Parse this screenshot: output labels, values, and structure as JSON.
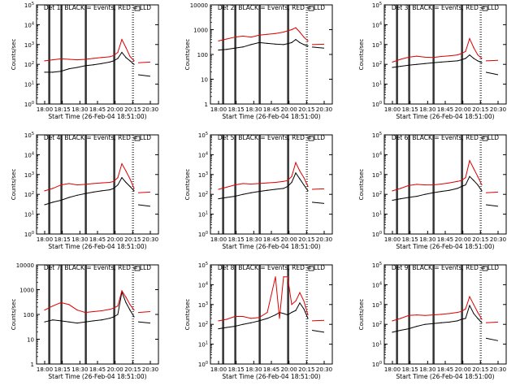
{
  "figure": {
    "grid_layout": "3x3",
    "background": "#ffffff",
    "events_color": "#000000",
    "lld_color": "#dd0000",
    "marker_color": "#000000"
  },
  "chart_data": [
    {
      "type": "line",
      "title": "Det 1: BLACK = Events, RED = LLD",
      "xlabel": "Start Time (26-Feb-04 18:51:00)",
      "ylabel": "Counts/sec",
      "x_ticks": [
        "18:00",
        "18:15",
        "18:30",
        "18:45",
        "20:00",
        "20:15",
        "20:30"
      ],
      "y_ticks": [
        "10^0",
        "10^1",
        "10^2",
        "10^3",
        "10^4",
        "10^5"
      ],
      "yscale": "log",
      "ylim": [
        1,
        100000
      ],
      "xlim": [
        0,
        150
      ],
      "marker_x": [
        15,
        30,
        60,
        95
      ],
      "saa_boundary_x": 118,
      "x": [
        10,
        20,
        30,
        40,
        50,
        60,
        70,
        80,
        90,
        95,
        100,
        105,
        110,
        115,
        120
      ],
      "series": [
        {
          "name": "BLACK = Events",
          "values": [
            40,
            40,
            45,
            60,
            70,
            85,
            95,
            110,
            130,
            150,
            200,
            400,
            220,
            150,
            100
          ]
        },
        {
          "name": "RED = LLD",
          "values": [
            150,
            170,
            190,
            180,
            170,
            180,
            200,
            220,
            240,
            280,
            400,
            1800,
            700,
            250,
            150
          ]
        }
      ],
      "after_saa": {
        "x": [
          125,
          140
        ],
        "events": [
          30,
          25
        ],
        "lld": [
          120,
          130
        ]
      }
    },
    {
      "type": "line",
      "title": "Det 2: BLACK = Events, RED = LLD",
      "xlabel": "Start Time (26-Feb-04 18:51:00)",
      "ylabel": "Counts/sec",
      "x_ticks": [
        "18:00",
        "18:15",
        "18:30",
        "18:45",
        "20:00",
        "20:15",
        "20:30"
      ],
      "y_ticks": [
        "1",
        "10",
        "100",
        "1000",
        "10000"
      ],
      "yscale": "log",
      "ylim": [
        1,
        10000
      ],
      "xlim": [
        0,
        150
      ],
      "marker_x": [
        15,
        30,
        60,
        95
      ],
      "saa_boundary_x": 118,
      "x": [
        10,
        20,
        30,
        40,
        50,
        60,
        70,
        80,
        90,
        95,
        100,
        105,
        110,
        115,
        120
      ],
      "series": [
        {
          "name": "BLACK = Events",
          "values": [
            150,
            160,
            180,
            200,
            250,
            300,
            280,
            260,
            250,
            270,
            300,
            400,
            300,
            250,
            220
          ]
        },
        {
          "name": "RED = LLD",
          "values": [
            350,
            420,
            500,
            550,
            500,
            600,
            650,
            700,
            800,
            900,
            1000,
            1200,
            800,
            500,
            350
          ]
        }
      ],
      "after_saa": {
        "x": [
          125,
          140
        ],
        "events": [
          200,
          180
        ],
        "lld": [
          250,
          260
        ]
      }
    },
    {
      "type": "line",
      "title": "Det 3: BLACK = Events, RED = LLD",
      "xlabel": "Start Time (26-Feb-04 18:51:00)",
      "ylabel": "Counts/sec",
      "x_ticks": [
        "18:00",
        "18:15",
        "18:30",
        "18:45",
        "20:00",
        "20:15",
        "20:30"
      ],
      "y_ticks": [
        "10^0",
        "10^1",
        "10^2",
        "10^3",
        "10^4",
        "10^5"
      ],
      "yscale": "log",
      "ylim": [
        1,
        100000
      ],
      "xlim": [
        0,
        150
      ],
      "marker_x": [
        15,
        30,
        60,
        95
      ],
      "saa_boundary_x": 118,
      "x": [
        10,
        20,
        30,
        40,
        50,
        60,
        70,
        80,
        90,
        95,
        100,
        105,
        110,
        115,
        120
      ],
      "series": [
        {
          "name": "BLACK = Events",
          "values": [
            70,
            80,
            90,
            100,
            110,
            120,
            130,
            140,
            150,
            170,
            200,
            300,
            200,
            150,
            120
          ]
        },
        {
          "name": "RED = LLD",
          "values": [
            130,
            180,
            230,
            260,
            230,
            220,
            250,
            270,
            300,
            350,
            450,
            2000,
            700,
            300,
            200
          ]
        }
      ],
      "after_saa": {
        "x": [
          125,
          140
        ],
        "events": [
          40,
          30
        ],
        "lld": [
          150,
          160
        ]
      }
    },
    {
      "type": "line",
      "title": "Det 4: BLACK = Events, RED = LLD",
      "xlabel": "Start Time (26-Feb-04 18:51:00)",
      "ylabel": "Counts/sec",
      "x_ticks": [
        "18:00",
        "18:15",
        "18:30",
        "18:45",
        "20:00",
        "20:15",
        "20:30"
      ],
      "y_ticks": [
        "10^0",
        "10^1",
        "10^2",
        "10^3",
        "10^4",
        "10^5"
      ],
      "yscale": "log",
      "ylim": [
        1,
        100000
      ],
      "xlim": [
        0,
        150
      ],
      "marker_x": [
        15,
        30,
        60,
        95
      ],
      "saa_boundary_x": 118,
      "x": [
        10,
        20,
        30,
        40,
        50,
        60,
        70,
        80,
        90,
        95,
        100,
        105,
        110,
        115,
        120
      ],
      "series": [
        {
          "name": "BLACK = Events",
          "values": [
            30,
            40,
            50,
            70,
            90,
            110,
            130,
            150,
            170,
            200,
            300,
            700,
            400,
            250,
            150
          ]
        },
        {
          "name": "RED = LLD",
          "values": [
            150,
            200,
            300,
            350,
            300,
            320,
            350,
            380,
            400,
            450,
            700,
            3500,
            1500,
            600,
            200
          ]
        }
      ],
      "after_saa": {
        "x": [
          125,
          140
        ],
        "events": [
          30,
          25
        ],
        "lld": [
          120,
          130
        ]
      }
    },
    {
      "type": "line",
      "title": "Det 5: BLACK = Events, RED = LLD",
      "xlabel": "Start Time (26-Feb-04 18:51:00)",
      "ylabel": "Counts/sec",
      "x_ticks": [
        "18:00",
        "18:15",
        "18:30",
        "18:45",
        "20:00",
        "20:15",
        "20:30"
      ],
      "y_ticks": [
        "10^0",
        "10^1",
        "10^2",
        "10^3",
        "10^4",
        "10^5"
      ],
      "yscale": "log",
      "ylim": [
        1,
        100000
      ],
      "xlim": [
        0,
        150
      ],
      "marker_x": [
        15,
        30,
        60,
        95
      ],
      "saa_boundary_x": 118,
      "x": [
        10,
        20,
        30,
        40,
        50,
        60,
        70,
        80,
        90,
        95,
        100,
        105,
        110,
        115,
        120
      ],
      "series": [
        {
          "name": "BLACK = Events",
          "values": [
            60,
            70,
            80,
            100,
            120,
            140,
            160,
            180,
            200,
            250,
            400,
            1200,
            600,
            300,
            150
          ]
        },
        {
          "name": "RED = LLD",
          "values": [
            180,
            230,
            300,
            350,
            330,
            350,
            380,
            400,
            450,
            500,
            800,
            4000,
            1500,
            700,
            250
          ]
        }
      ],
      "after_saa": {
        "x": [
          125,
          140
        ],
        "events": [
          40,
          35
        ],
        "lld": [
          180,
          190
        ]
      }
    },
    {
      "type": "line",
      "title": "Det 6: BLACK = Events, RED = LLD",
      "xlabel": "Start Time (26-Feb-04 18:51:00)",
      "ylabel": "Counts/sec",
      "x_ticks": [
        "18:00",
        "18:15",
        "18:30",
        "18:45",
        "20:00",
        "20:15",
        "20:30"
      ],
      "y_ticks": [
        "10^0",
        "10^1",
        "10^2",
        "10^3",
        "10^4",
        "10^5"
      ],
      "yscale": "log",
      "ylim": [
        1,
        100000
      ],
      "xlim": [
        0,
        150
      ],
      "marker_x": [
        15,
        30,
        60,
        95
      ],
      "saa_boundary_x": 118,
      "x": [
        10,
        20,
        30,
        40,
        50,
        60,
        70,
        80,
        90,
        95,
        100,
        105,
        110,
        115,
        120
      ],
      "series": [
        {
          "name": "BLACK = Events",
          "values": [
            50,
            60,
            70,
            80,
            100,
            120,
            140,
            160,
            200,
            250,
            300,
            800,
            500,
            300,
            150
          ]
        },
        {
          "name": "RED = LLD",
          "values": [
            150,
            200,
            280,
            320,
            300,
            300,
            330,
            380,
            450,
            500,
            700,
            5000,
            2000,
            800,
            300
          ]
        }
      ],
      "after_saa": {
        "x": [
          125,
          140
        ],
        "events": [
          30,
          25
        ],
        "lld": [
          120,
          130
        ]
      }
    },
    {
      "type": "line",
      "title": "Det 7: BLACK = Events, RED = LLD",
      "xlabel": "Start Time (26-Feb-04 18:51:00)",
      "ylabel": "Counts/sec",
      "x_ticks": [
        "18:00",
        "18:15",
        "18:30",
        "18:45",
        "20:00",
        "20:15",
        "20:30"
      ],
      "y_ticks": [
        "1",
        "10",
        "100",
        "1000",
        "10000"
      ],
      "yscale": "log",
      "ylim": [
        1,
        10000
      ],
      "xlim": [
        0,
        150
      ],
      "marker_x": [
        15,
        30,
        60,
        95
      ],
      "saa_boundary_x": 118,
      "x": [
        10,
        20,
        30,
        40,
        50,
        60,
        70,
        80,
        90,
        95,
        100,
        105,
        110,
        115,
        120
      ],
      "series": [
        {
          "name": "BLACK = Events",
          "values": [
            50,
            60,
            55,
            50,
            45,
            50,
            55,
            60,
            70,
            80,
            100,
            800,
            300,
            150,
            80
          ]
        },
        {
          "name": "RED = LLD",
          "values": [
            150,
            220,
            300,
            250,
            150,
            120,
            130,
            140,
            160,
            180,
            220,
            900,
            500,
            250,
            150
          ]
        }
      ],
      "after_saa": {
        "x": [
          125,
          140
        ],
        "events": [
          50,
          45
        ],
        "lld": [
          120,
          130
        ]
      }
    },
    {
      "type": "line",
      "title": "Det 8: BLACK = Events, RED = LLD",
      "xlabel": "Start Time (26-Feb-04 18:51:00)",
      "ylabel": "Counts/sec",
      "x_ticks": [
        "18:00",
        "18:15",
        "18:30",
        "18:45",
        "20:00",
        "20:15",
        "20:30"
      ],
      "y_ticks": [
        "10^0",
        "10^1",
        "10^2",
        "10^3",
        "10^4",
        "10^5"
      ],
      "yscale": "log",
      "ylim": [
        1,
        100000
      ],
      "xlim": [
        0,
        150
      ],
      "marker_x": [
        15,
        30,
        60,
        95
      ],
      "saa_boundary_x": 118,
      "x": [
        10,
        20,
        30,
        40,
        50,
        60,
        70,
        80,
        85,
        90,
        95,
        100,
        105,
        110,
        115,
        120
      ],
      "series": [
        {
          "name": "BLACK = Events",
          "values": [
            60,
            70,
            80,
            100,
            120,
            150,
            200,
            300,
            400,
            350,
            300,
            400,
            500,
            1200,
            600,
            200
          ]
        },
        {
          "name": "RED = LLD",
          "values": [
            150,
            180,
            250,
            250,
            200,
            220,
            400,
            25000,
            200,
            25000,
            25000,
            1000,
            1500,
            4000,
            1500,
            300
          ]
        }
      ],
      "after_saa": {
        "x": [
          125,
          140
        ],
        "events": [
          50,
          40
        ],
        "lld": [
          150,
          160
        ]
      }
    },
    {
      "type": "line",
      "title": "Det 9: BLACK = Events, RED = LLD",
      "xlabel": "Start Time (26-Feb-04 18:51:00)",
      "ylabel": "Counts/sec",
      "x_ticks": [
        "18:00",
        "18:15",
        "18:30",
        "18:45",
        "20:00",
        "20:15",
        "20:30"
      ],
      "y_ticks": [
        "10^0",
        "10^1",
        "10^2",
        "10^3",
        "10^4",
        "10^5"
      ],
      "yscale": "log",
      "ylim": [
        1,
        100000
      ],
      "xlim": [
        0,
        150
      ],
      "marker_x": [
        15,
        30,
        60,
        95
      ],
      "saa_boundary_x": 118,
      "x": [
        10,
        20,
        30,
        40,
        50,
        60,
        70,
        80,
        90,
        95,
        100,
        105,
        110,
        115,
        120
      ],
      "series": [
        {
          "name": "BLACK = Events",
          "values": [
            40,
            50,
            60,
            80,
            100,
            110,
            120,
            130,
            150,
            180,
            200,
            900,
            350,
            200,
            120
          ]
        },
        {
          "name": "RED = LLD",
          "values": [
            150,
            200,
            280,
            300,
            280,
            300,
            320,
            350,
            400,
            450,
            600,
            2500,
            1000,
            400,
            180
          ]
        }
      ],
      "after_saa": {
        "x": [
          125,
          140
        ],
        "events": [
          20,
          15
        ],
        "lld": [
          120,
          130
        ]
      }
    }
  ]
}
